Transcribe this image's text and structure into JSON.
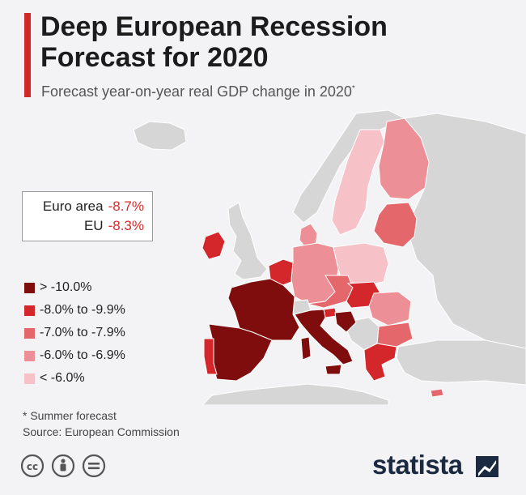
{
  "title": "Deep European Recession Forecast for 2020",
  "subtitle": "Forecast year-on-year real GDP change in 2020",
  "subtitle_marker": "*",
  "summary": [
    {
      "label": "Euro area",
      "value": "-8.7%"
    },
    {
      "label": "EU",
      "value": "-8.3%"
    }
  ],
  "legend": [
    {
      "label": "> -10.0%",
      "color": "#7f0d0d"
    },
    {
      "label": "-8.0% to -9.9%",
      "color": "#d3272b"
    },
    {
      "label": "-7.0% to -7.9%",
      "color": "#e4676c"
    },
    {
      "label": "-6.0% to -6.9%",
      "color": "#ec8f96"
    },
    {
      "label": "< -6.0%",
      "color": "#f6c2c8"
    }
  ],
  "regions": [
    {
      "id": "greenland-iceland",
      "category": null,
      "color": "#d6d6d6"
    },
    {
      "id": "united-kingdom",
      "category": null,
      "color": "#d6d6d6"
    },
    {
      "id": "norway",
      "category": null,
      "color": "#d6d6d6"
    },
    {
      "id": "russia-east",
      "category": null,
      "color": "#d6d6d6"
    },
    {
      "id": "ireland",
      "category": "-8.0% to -9.9%",
      "color": "#d3272b"
    },
    {
      "id": "sweden",
      "category": "< -6.0%",
      "color": "#f6c2c8"
    },
    {
      "id": "finland",
      "category": "-6.0% to -6.9%",
      "color": "#ec8f96"
    },
    {
      "id": "baltics",
      "category": "-7.0% to -7.9%",
      "color": "#e4676c"
    },
    {
      "id": "denmark",
      "category": "-6.0% to -6.9%",
      "color": "#ec8f96"
    },
    {
      "id": "netherlands-belgium",
      "category": "-8.0% to -9.9%",
      "color": "#d3272b"
    },
    {
      "id": "germany",
      "category": "-6.0% to -6.9%",
      "color": "#ec8f96"
    },
    {
      "id": "poland",
      "category": "< -6.0%",
      "color": "#f6c2c8"
    },
    {
      "id": "czechia-austria",
      "category": "-7.0% to -7.9%",
      "color": "#e4676c"
    },
    {
      "id": "slovakia-hungary",
      "category": "-8.0% to -9.9%",
      "color": "#d3272b"
    },
    {
      "id": "romania",
      "category": "-6.0% to -6.9%",
      "color": "#ec8f96"
    },
    {
      "id": "bulgaria",
      "category": "-7.0% to -7.9%",
      "color": "#e4676c"
    },
    {
      "id": "france",
      "category": "> -10.0%",
      "color": "#7f0d0d"
    },
    {
      "id": "spain",
      "category": "> -10.0%",
      "color": "#7f0d0d"
    },
    {
      "id": "portugal",
      "category": "-8.0% to -9.9%",
      "color": "#d3272b"
    },
    {
      "id": "italy",
      "category": "> -10.0%",
      "color": "#7f0d0d"
    },
    {
      "id": "croatia",
      "category": "> -10.0%",
      "color": "#7f0d0d"
    },
    {
      "id": "slovenia",
      "category": "-8.0% to -9.9%",
      "color": "#d3272b"
    },
    {
      "id": "greece",
      "category": "-8.0% to -9.9%",
      "color": "#d3272b"
    },
    {
      "id": "cyprus",
      "category": "-7.0% to -7.9%",
      "color": "#e4676c"
    },
    {
      "id": "balkans-non-eu",
      "category": null,
      "color": "#d6d6d6"
    },
    {
      "id": "switzerland",
      "category": null,
      "color": "#d6d6d6"
    },
    {
      "id": "north-africa",
      "category": null,
      "color": "#d6d6d6"
    },
    {
      "id": "turkey",
      "category": null,
      "color": "#d6d6d6"
    }
  ],
  "footnote": "* Summer forecast",
  "source": "Source: European Commission",
  "brand": "statista",
  "accent_color": "#d3272b",
  "license_icons": [
    "cc-icon",
    "by-icon",
    "nd-icon"
  ]
}
